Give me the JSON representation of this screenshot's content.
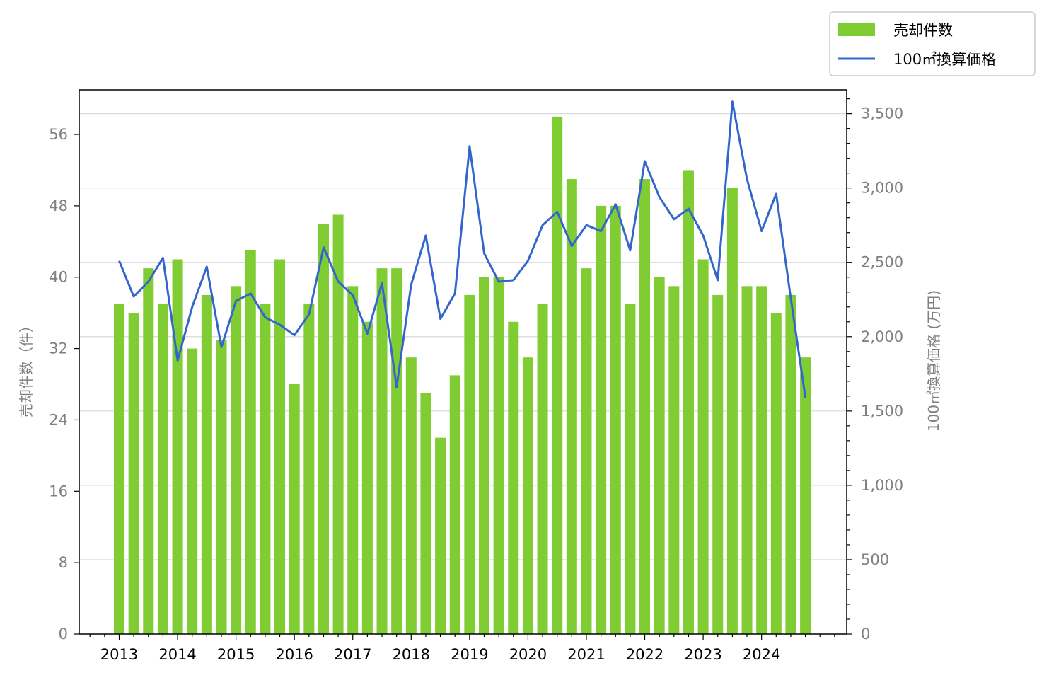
{
  "chart_data": {
    "type": "bar+line",
    "categories": [
      "2013",
      "2013",
      "2013",
      "2013",
      "2014",
      "2014",
      "2014",
      "2014",
      "2015",
      "2015",
      "2015",
      "2015",
      "2016",
      "2016",
      "2016",
      "2016",
      "2017",
      "2017",
      "2017",
      "2017",
      "2018",
      "2018",
      "2018",
      "2018",
      "2019",
      "2019",
      "2019",
      "2019",
      "2020",
      "2020",
      "2020",
      "2020",
      "2021",
      "2021",
      "2021",
      "2021",
      "2022",
      "2022",
      "2022",
      "2022",
      "2023",
      "2023",
      "2023",
      "2023",
      "2024",
      "2024",
      "2024",
      "2024"
    ],
    "x_tick_labels": [
      "2013",
      "2014",
      "2015",
      "2016",
      "2017",
      "2018",
      "2019",
      "2020",
      "2021",
      "2022",
      "2023",
      "2024"
    ],
    "series": [
      {
        "name": "売却件数",
        "type": "bar",
        "axis": "left",
        "color": "#80cc33",
        "values": [
          37,
          36,
          41,
          37,
          42,
          32,
          38,
          33,
          39,
          43,
          37,
          42,
          28,
          37,
          46,
          47,
          39,
          35,
          41,
          41,
          31,
          27,
          22,
          29,
          38,
          40,
          40,
          35,
          31,
          37,
          58,
          51,
          41,
          48,
          48,
          37,
          51,
          40,
          39,
          52,
          42,
          38,
          50,
          39,
          39,
          36,
          38,
          31
        ]
      },
      {
        "name": "100㎡換算価格",
        "type": "line",
        "axis": "right",
        "color": "#3366cc",
        "values": [
          2510,
          2270,
          2370,
          2530,
          1840,
          2200,
          2470,
          1930,
          2240,
          2290,
          2130,
          2080,
          2010,
          2150,
          2600,
          2370,
          2280,
          2020,
          2360,
          1660,
          2350,
          2680,
          2120,
          2290,
          3280,
          2560,
          2370,
          2380,
          2510,
          2750,
          2840,
          2610,
          2750,
          2710,
          2890,
          2580,
          3180,
          2940,
          2790,
          2860,
          2680,
          2380,
          3580,
          3060,
          2710,
          2960,
          2260,
          1590
        ]
      }
    ],
    "y_left": {
      "label": "売却件数（件）",
      "ylim": [
        0,
        61
      ],
      "ticks": [
        0,
        8,
        16,
        24,
        32,
        40,
        48,
        56
      ],
      "tick_labels": [
        "0",
        "8",
        "16",
        "24",
        "32",
        "40",
        "48",
        "56"
      ]
    },
    "y_right": {
      "label": "100㎡換算価格 (万円)",
      "ylim": [
        0,
        3660
      ],
      "ticks": [
        0,
        500,
        1000,
        1500,
        2000,
        2500,
        3000,
        3500
      ],
      "tick_labels": [
        "0",
        "500",
        "1,000",
        "1,500",
        "2,000",
        "2,500",
        "3,000",
        "3,500"
      ]
    },
    "grid": "horizontal (right axis major ticks)",
    "legend_position": "top-right, outside plot"
  }
}
